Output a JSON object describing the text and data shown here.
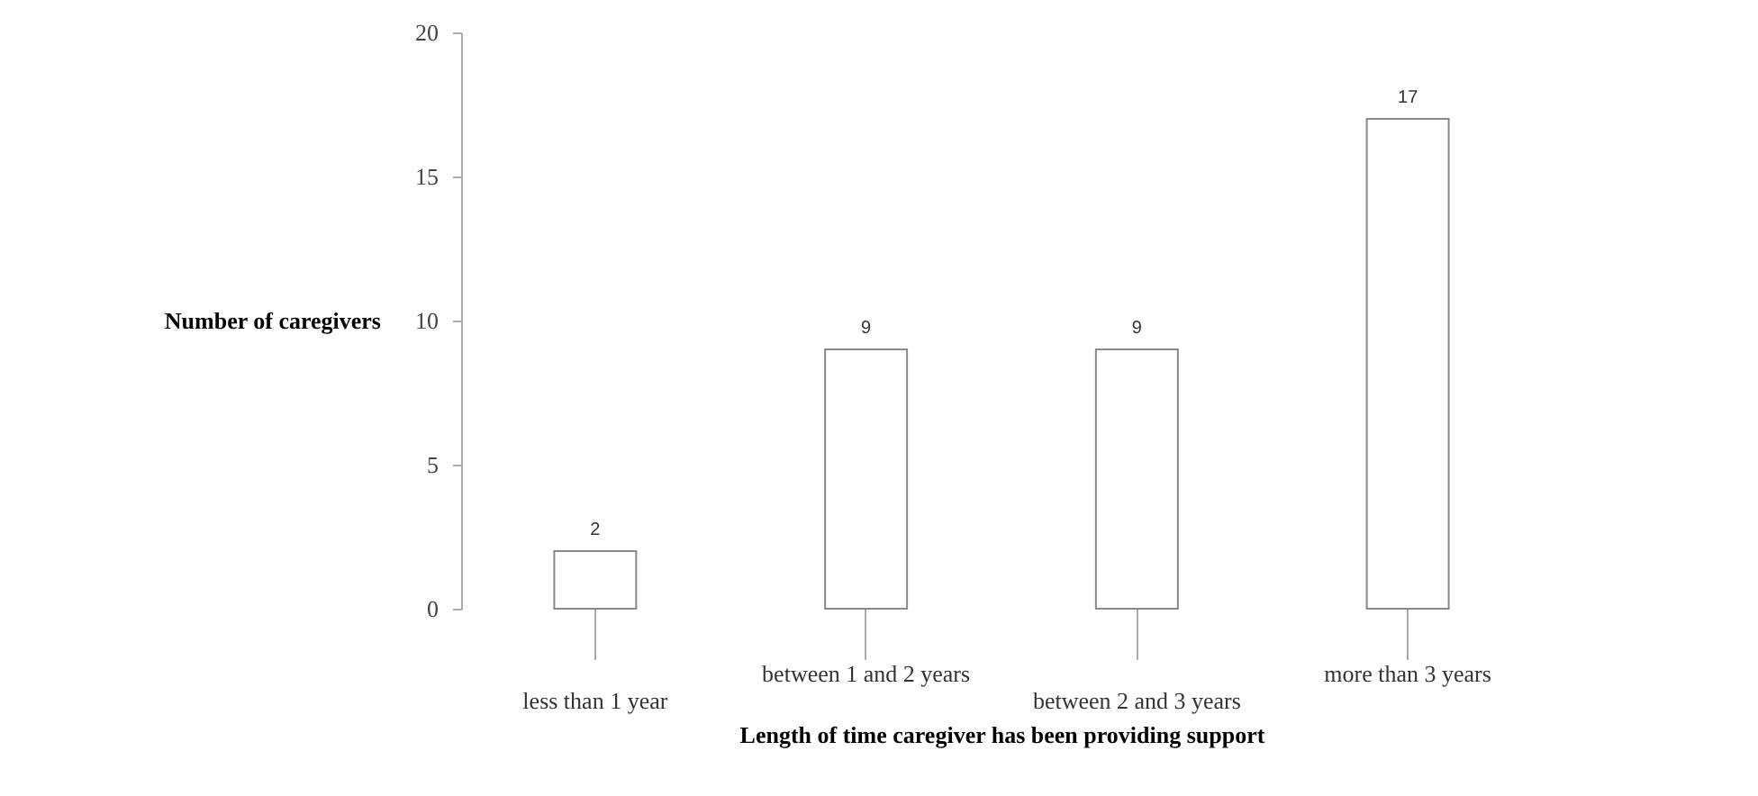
{
  "chart_data": {
    "type": "bar",
    "xlabel": "Length of time caregiver has been providing support",
    "ylabel": "Number of caregivers",
    "categories": [
      "less than 1 year",
      "between 1 and 2 years",
      "between 2 and 3 years",
      "more than 3 years"
    ],
    "values": [
      2,
      9,
      9,
      17
    ],
    "color": "#ffffff",
    "ylim": [
      0,
      20
    ],
    "yticks": [
      0,
      5,
      10,
      15,
      20
    ],
    "grid": false,
    "data_labels": true
  }
}
